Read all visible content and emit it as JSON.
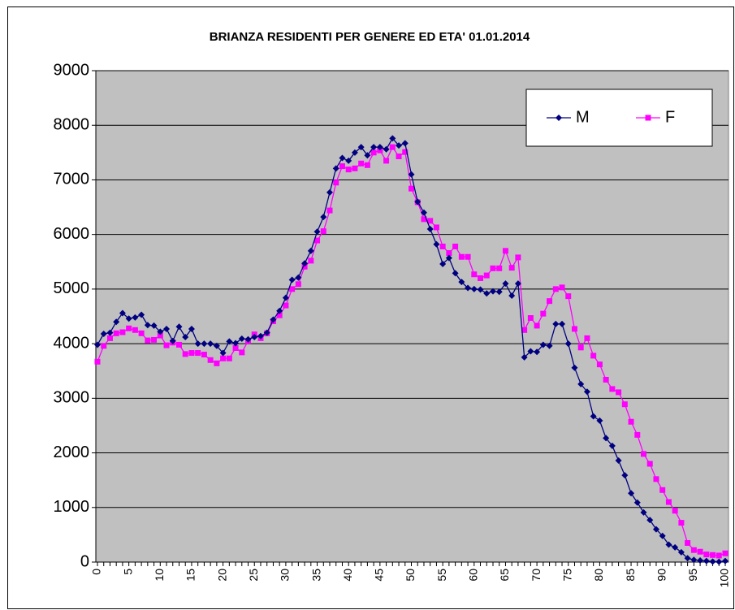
{
  "chart_data": {
    "type": "line",
    "title": "BRIANZA RESIDENTI PER GENERE ED ETA' 01.01.2014",
    "categories": [
      0,
      null,
      null,
      null,
      null,
      5,
      null,
      null,
      null,
      null,
      10,
      null,
      null,
      null,
      null,
      15,
      null,
      null,
      null,
      null,
      20,
      null,
      null,
      null,
      null,
      25,
      null,
      null,
      null,
      null,
      30,
      null,
      null,
      null,
      null,
      35,
      null,
      null,
      null,
      null,
      40,
      null,
      null,
      null,
      null,
      45,
      null,
      null,
      null,
      null,
      50,
      null,
      null,
      null,
      null,
      55,
      null,
      null,
      null,
      null,
      60,
      null,
      null,
      null,
      null,
      65,
      null,
      null,
      null,
      null,
      70,
      null,
      null,
      null,
      null,
      75,
      null,
      null,
      null,
      null,
      80,
      null,
      null,
      null,
      null,
      85,
      null,
      null,
      null,
      null,
      90,
      null,
      null,
      null,
      null,
      95,
      null,
      null,
      null,
      null,
      100
    ],
    "series": [
      {
        "name": "M",
        "color": "#000080",
        "marker": "diamond",
        "values": [
          3980,
          4180,
          4200,
          4400,
          4560,
          4460,
          4480,
          4530,
          4340,
          4330,
          4220,
          4270,
          4050,
          4310,
          4120,
          4270,
          4000,
          4000,
          4000,
          3960,
          3830,
          4040,
          4010,
          4090,
          4080,
          4120,
          4140,
          4200,
          4440,
          4600,
          4840,
          5170,
          5210,
          5470,
          5700,
          6050,
          6320,
          6770,
          7210,
          7400,
          7350,
          7500,
          7600,
          7450,
          7600,
          7600,
          7560,
          7760,
          7630,
          7670,
          7100,
          6600,
          6400,
          6100,
          5820,
          5460,
          5570,
          5290,
          5130,
          5020,
          5000,
          4990,
          4920,
          4960,
          4950,
          5100,
          4880,
          5100,
          3750,
          3860,
          3850,
          3980,
          3960,
          4360,
          4360,
          4000,
          3560,
          3260,
          3120,
          2670,
          2590,
          2270,
          2130,
          1860,
          1590,
          1260,
          1090,
          910,
          770,
          600,
          480,
          320,
          270,
          180,
          70,
          40,
          30,
          20,
          10,
          5,
          20
        ]
      },
      {
        "name": "F",
        "color": "#ff00ff",
        "marker": "square",
        "values": [
          3670,
          3960,
          4100,
          4190,
          4210,
          4280,
          4250,
          4190,
          4060,
          4070,
          4150,
          3970,
          4020,
          3980,
          3810,
          3830,
          3830,
          3800,
          3700,
          3640,
          3730,
          3730,
          3920,
          3840,
          4050,
          4170,
          4100,
          4190,
          4410,
          4520,
          4700,
          5000,
          5090,
          5410,
          5520,
          5890,
          6060,
          6440,
          6950,
          7250,
          7190,
          7210,
          7300,
          7270,
          7500,
          7540,
          7350,
          7600,
          7430,
          7510,
          6840,
          6590,
          6280,
          6250,
          6130,
          5780,
          5660,
          5780,
          5590,
          5590,
          5270,
          5200,
          5250,
          5380,
          5380,
          5700,
          5390,
          5580,
          4250,
          4470,
          4330,
          4550,
          4780,
          5000,
          5030,
          4870,
          4270,
          3930,
          4100,
          3780,
          3620,
          3340,
          3170,
          3110,
          2890,
          2570,
          2330,
          1980,
          1800,
          1520,
          1320,
          1100,
          940,
          720,
          350,
          220,
          190,
          140,
          130,
          120,
          160
        ]
      }
    ],
    "ylim": [
      0,
      9000
    ],
    "yticks": [
      0,
      1000,
      2000,
      3000,
      4000,
      5000,
      6000,
      7000,
      8000,
      9000
    ],
    "grid": true,
    "legend": "top-right",
    "background": "#c0c0c0"
  }
}
